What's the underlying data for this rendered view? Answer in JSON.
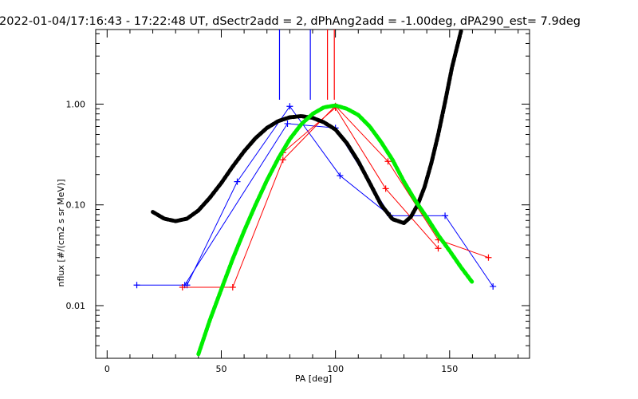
{
  "chart_data": {
    "type": "line",
    "title": "2022-01-04/17:16:43 - 17:22:48 UT, dSectr2add = 2, dPhAng2add = -1.00deg, dPA290_est=   7.9deg",
    "xlabel": "PA [deg]",
    "ylabel": "nflux [#/(cm2 s sr MeV)]",
    "xlim": [
      -5,
      185
    ],
    "ylim": [
      0.003,
      5.5
    ],
    "yscale": "log",
    "grid": false,
    "x_ticks": [
      {
        "value": 0,
        "label": "0"
      },
      {
        "value": 50,
        "label": "50"
      },
      {
        "value": 100,
        "label": "100"
      },
      {
        "value": 150,
        "label": "150"
      }
    ],
    "y_ticks": [
      {
        "value": 0.01,
        "label": "0.01"
      },
      {
        "value": 0.1,
        "label": "0.10"
      },
      {
        "value": 1,
        "label": "1.00"
      }
    ],
    "series": [
      {
        "color": "#0000ff",
        "style": "line-plus",
        "x": [
          13,
          35,
          57,
          80,
          102,
          124,
          148,
          169
        ],
        "y": [
          0.016,
          0.016,
          0.17,
          0.95,
          0.195,
          0.078,
          0.078,
          0.0155
        ]
      },
      {
        "color": "#0000ff",
        "style": "line-plus",
        "x": [
          34,
          79,
          100,
          124
        ],
        "y": [
          0.016,
          0.64,
          0.58,
          0.078
        ]
      },
      {
        "color": "#ff0000",
        "style": "line-plus",
        "x": [
          33,
          55,
          77,
          100,
          123,
          145,
          167
        ],
        "y": [
          0.0152,
          0.0152,
          0.28,
          0.96,
          0.27,
          0.045,
          0.03
        ]
      },
      {
        "color": "#ff0000",
        "style": "line-plus",
        "x": [
          77,
          100,
          122,
          145
        ],
        "y": [
          0.33,
          0.92,
          0.145,
          0.037
        ]
      },
      {
        "color": "#000000",
        "style": "thick-dots",
        "x": [
          20,
          25,
          30,
          35,
          40,
          45,
          50,
          55,
          60,
          65,
          70,
          75,
          80,
          85,
          90,
          95,
          100,
          105,
          110,
          115,
          120,
          125,
          130,
          133,
          136,
          139,
          142,
          145,
          148,
          151,
          153,
          155
        ],
        "y": [
          0.085,
          0.073,
          0.069,
          0.073,
          0.088,
          0.118,
          0.165,
          0.24,
          0.34,
          0.46,
          0.58,
          0.68,
          0.74,
          0.76,
          0.73,
          0.66,
          0.56,
          0.41,
          0.27,
          0.165,
          0.1,
          0.072,
          0.066,
          0.076,
          0.1,
          0.15,
          0.26,
          0.5,
          1.05,
          2.3,
          3.5,
          5.3
        ]
      },
      {
        "color": "#00ee00",
        "style": "thick-dots",
        "x": [
          40,
          45,
          50,
          55,
          60,
          65,
          70,
          75,
          80,
          85,
          90,
          95,
          100,
          105,
          110,
          115,
          120,
          125,
          130,
          135,
          140,
          145,
          150,
          155,
          160
        ],
        "y": [
          0.0033,
          0.0072,
          0.0145,
          0.029,
          0.055,
          0.1,
          0.175,
          0.29,
          0.45,
          0.63,
          0.8,
          0.93,
          0.97,
          0.9,
          0.78,
          0.6,
          0.42,
          0.28,
          0.17,
          0.11,
          0.075,
          0.05,
          0.035,
          0.024,
          0.017
        ]
      }
    ],
    "vertical_markers": [
      {
        "x": 75.5,
        "color": "#0000ff"
      },
      {
        "x": 89,
        "color": "#0000ff"
      },
      {
        "x": 96.5,
        "color": "#ff0000"
      },
      {
        "x": 99.5,
        "color": "#ff0000"
      }
    ]
  }
}
